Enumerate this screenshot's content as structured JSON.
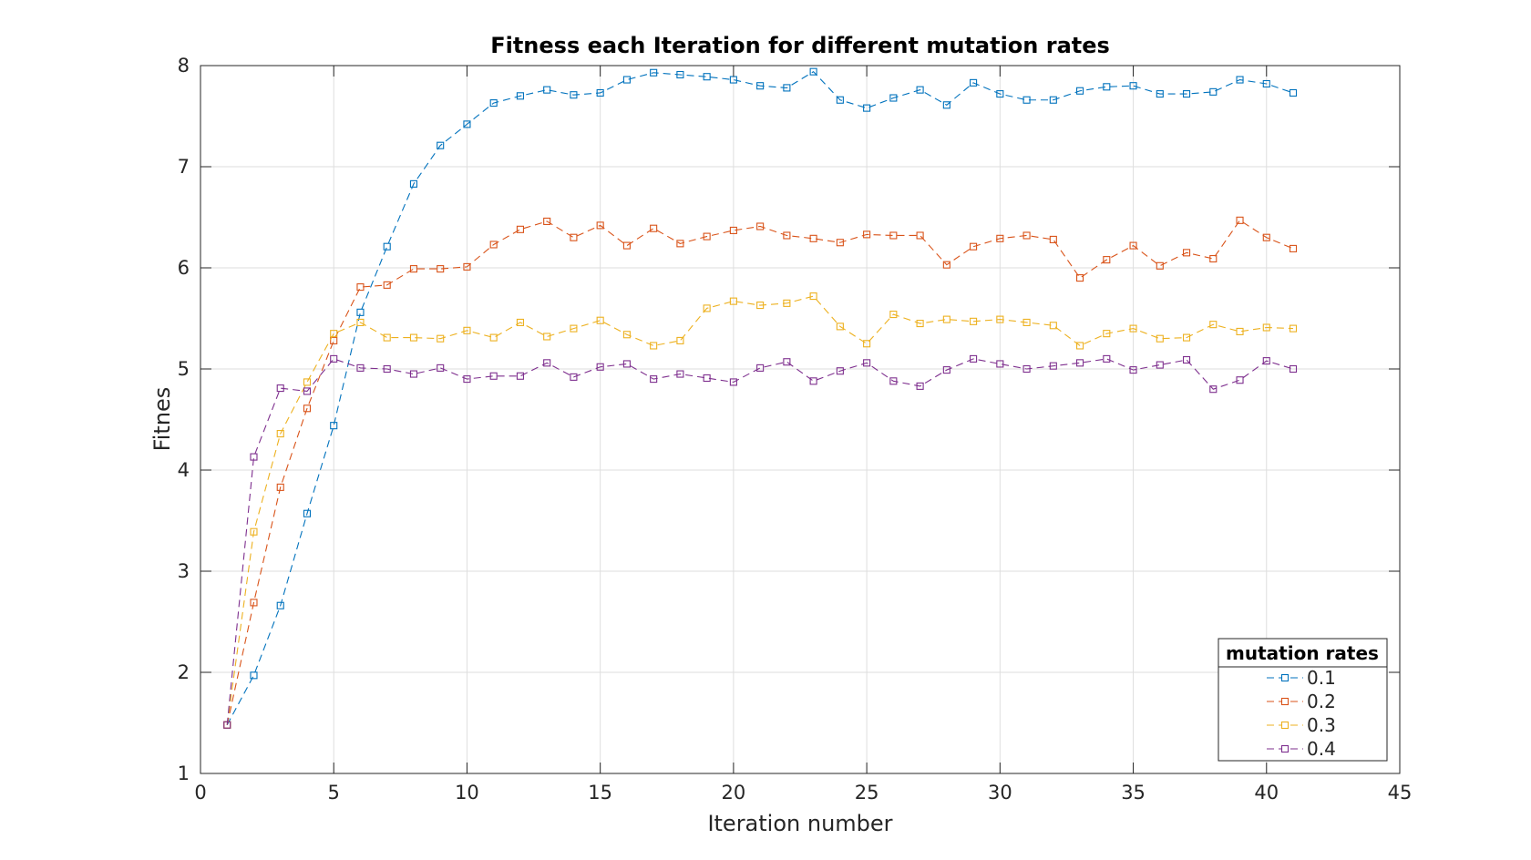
{
  "chart_data": {
    "type": "line",
    "title": "Fitness each Iteration for different mutation rates",
    "xlabel": "Iteration number",
    "ylabel": "Fitnes",
    "xlim": [
      0,
      45
    ],
    "ylim": [
      1,
      8
    ],
    "xticks": [
      "0",
      "5",
      "10",
      "15",
      "20",
      "25",
      "30",
      "35",
      "40",
      "45"
    ],
    "yticks": [
      "1",
      "2",
      "3",
      "4",
      "5",
      "6",
      "7",
      "8"
    ],
    "grid": true,
    "legend": {
      "title": "mutation rates",
      "position": "bottom-right"
    },
    "x": [
      1,
      2,
      3,
      4,
      5,
      6,
      7,
      8,
      9,
      10,
      11,
      12,
      13,
      14,
      15,
      16,
      17,
      18,
      19,
      20,
      21,
      22,
      23,
      24,
      25,
      26,
      27,
      28,
      29,
      30,
      31,
      32,
      33,
      34,
      35,
      36,
      37,
      38,
      39,
      40,
      41
    ],
    "series": [
      {
        "name": "0.1",
        "color": "#0072BD",
        "values": [
          1.48,
          1.97,
          2.66,
          3.57,
          4.44,
          5.56,
          6.21,
          6.83,
          7.21,
          7.42,
          7.63,
          7.7,
          7.76,
          7.71,
          7.73,
          7.86,
          7.93,
          7.91,
          7.89,
          7.86,
          7.8,
          7.78,
          7.94,
          7.66,
          7.58,
          7.68,
          7.76,
          7.61,
          7.83,
          7.72,
          7.66,
          7.66,
          7.75,
          7.79,
          7.8,
          7.72,
          7.72,
          7.74,
          7.86,
          7.82,
          7.73
        ]
      },
      {
        "name": "0.2",
        "color": "#D95319",
        "values": [
          1.48,
          2.69,
          3.83,
          4.61,
          5.28,
          5.81,
          5.83,
          5.99,
          5.99,
          6.01,
          6.23,
          6.38,
          6.46,
          6.3,
          6.42,
          6.22,
          6.39,
          6.24,
          6.31,
          6.37,
          6.41,
          6.32,
          6.29,
          6.25,
          6.33,
          6.32,
          6.32,
          6.03,
          6.21,
          6.29,
          6.32,
          6.28,
          5.9,
          6.08,
          6.22,
          6.02,
          6.15,
          6.09,
          6.47,
          6.3,
          6.19
        ]
      },
      {
        "name": "0.3",
        "color": "#EDB120",
        "values": [
          1.48,
          3.39,
          4.36,
          4.87,
          5.35,
          5.46,
          5.31,
          5.31,
          5.3,
          5.38,
          5.31,
          5.46,
          5.32,
          5.4,
          5.48,
          5.34,
          5.23,
          5.28,
          5.6,
          5.67,
          5.63,
          5.65,
          5.72,
          5.42,
          5.25,
          5.54,
          5.45,
          5.49,
          5.47,
          5.49,
          5.46,
          5.43,
          5.23,
          5.35,
          5.4,
          5.3,
          5.31,
          5.44,
          5.37,
          5.41,
          5.4
        ]
      },
      {
        "name": "0.4",
        "color": "#7E2F8E",
        "values": [
          1.48,
          4.13,
          4.81,
          4.78,
          5.1,
          5.01,
          5.0,
          4.95,
          5.01,
          4.9,
          4.93,
          4.93,
          5.06,
          4.92,
          5.02,
          5.05,
          4.9,
          4.95,
          4.91,
          4.87,
          5.01,
          5.07,
          4.88,
          4.98,
          5.06,
          4.88,
          4.83,
          4.99,
          5.1,
          5.05,
          5.0,
          5.03,
          5.06,
          5.1,
          4.99,
          5.04,
          5.09,
          4.8,
          4.89,
          5.08,
          5.0
        ]
      }
    ]
  }
}
